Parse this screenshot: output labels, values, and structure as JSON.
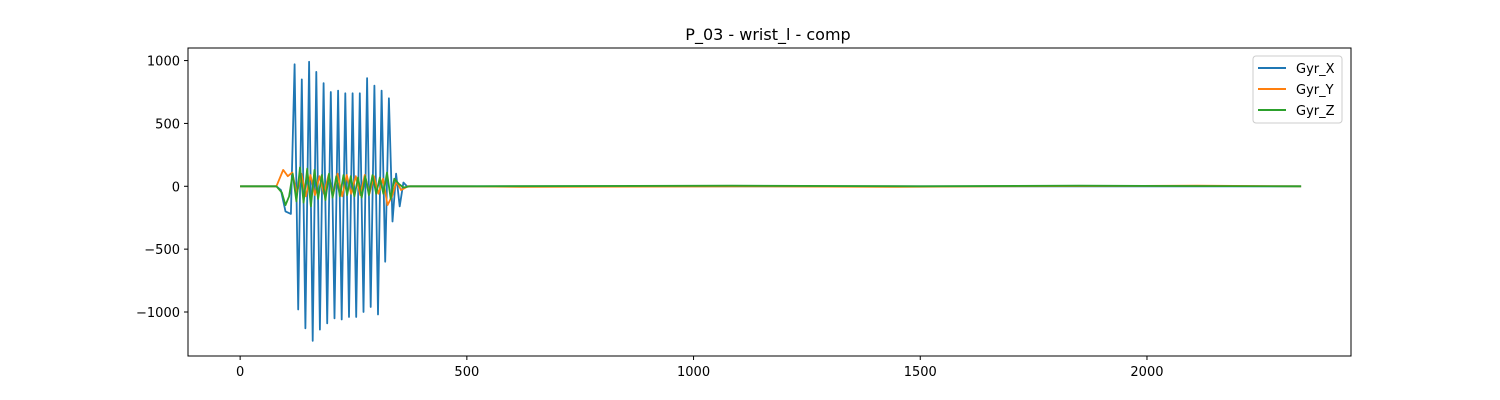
{
  "chart_data": {
    "type": "line",
    "title": "P_03 - wrist_l - comp",
    "xlabel": "",
    "ylabel": "",
    "xlim": [
      -115,
      2450
    ],
    "ylim": [
      -1350,
      1100
    ],
    "xticks": [
      0,
      500,
      1000,
      1500,
      2000
    ],
    "yticks": [
      -1000,
      -500,
      0,
      500,
      1000
    ],
    "xtick_labels": [
      "0",
      "500",
      "1000",
      "1500",
      "2000"
    ],
    "ytick_labels": [
      "−1000",
      "−500",
      "0",
      "500",
      "1000"
    ],
    "grid": false,
    "legend_position": "top-right",
    "series": [
      {
        "name": "Gyr_X",
        "color": "#1f77b4",
        "x": [
          0,
          80,
          90,
          100,
          112,
          120,
          128,
          136,
          144,
          152,
          160,
          168,
          176,
          184,
          192,
          200,
          208,
          216,
          224,
          232,
          240,
          248,
          256,
          264,
          272,
          280,
          288,
          296,
          304,
          312,
          320,
          328,
          336,
          344,
          352,
          360,
          368,
          380,
          500,
          800,
          1100,
          1500,
          1900,
          2340
        ],
        "y": [
          0,
          0,
          -30,
          -200,
          -220,
          970,
          -980,
          850,
          -1130,
          990,
          -1230,
          910,
          -1140,
          820,
          -1090,
          750,
          -1050,
          760,
          -1060,
          740,
          -1040,
          740,
          -1040,
          740,
          -1000,
          860,
          -960,
          800,
          -1020,
          760,
          -600,
          700,
          -280,
          100,
          -160,
          30,
          0,
          0,
          0,
          0,
          0,
          0,
          0,
          0
        ]
      },
      {
        "name": "Gyr_Y",
        "color": "#ff7f0e",
        "x": [
          0,
          80,
          95,
          105,
          115,
          125,
          135,
          145,
          155,
          165,
          175,
          185,
          195,
          205,
          215,
          225,
          235,
          245,
          255,
          265,
          275,
          285,
          295,
          305,
          315,
          325,
          335,
          345,
          355,
          370,
          500,
          620,
          1100,
          1450,
          1650,
          2110,
          2340
        ],
        "y": [
          0,
          0,
          130,
          80,
          110,
          -60,
          100,
          -80,
          90,
          -70,
          80,
          -60,
          90,
          -70,
          100,
          -80,
          90,
          -60,
          80,
          -70,
          90,
          -60,
          80,
          -60,
          60,
          -150,
          -80,
          40,
          -30,
          0,
          0,
          -5,
          0,
          -5,
          0,
          5,
          0
        ]
      },
      {
        "name": "Gyr_Z",
        "color": "#2ca02c",
        "x": [
          0,
          80,
          92,
          100,
          108,
          116,
          124,
          132,
          140,
          148,
          156,
          164,
          172,
          180,
          188,
          196,
          204,
          212,
          220,
          228,
          236,
          244,
          252,
          260,
          268,
          276,
          284,
          292,
          300,
          308,
          316,
          324,
          332,
          340,
          350,
          360,
          375,
          500,
          1085,
          1500,
          1850,
          2340
        ],
        "y": [
          0,
          0,
          -50,
          -150,
          -80,
          100,
          -120,
          150,
          -130,
          140,
          -160,
          130,
          -100,
          90,
          -110,
          100,
          -90,
          80,
          -80,
          90,
          -70,
          80,
          -80,
          70,
          -90,
          80,
          -70,
          90,
          -60,
          70,
          -60,
          110,
          -100,
          60,
          20,
          -10,
          0,
          0,
          5,
          0,
          5,
          0
        ]
      }
    ]
  }
}
